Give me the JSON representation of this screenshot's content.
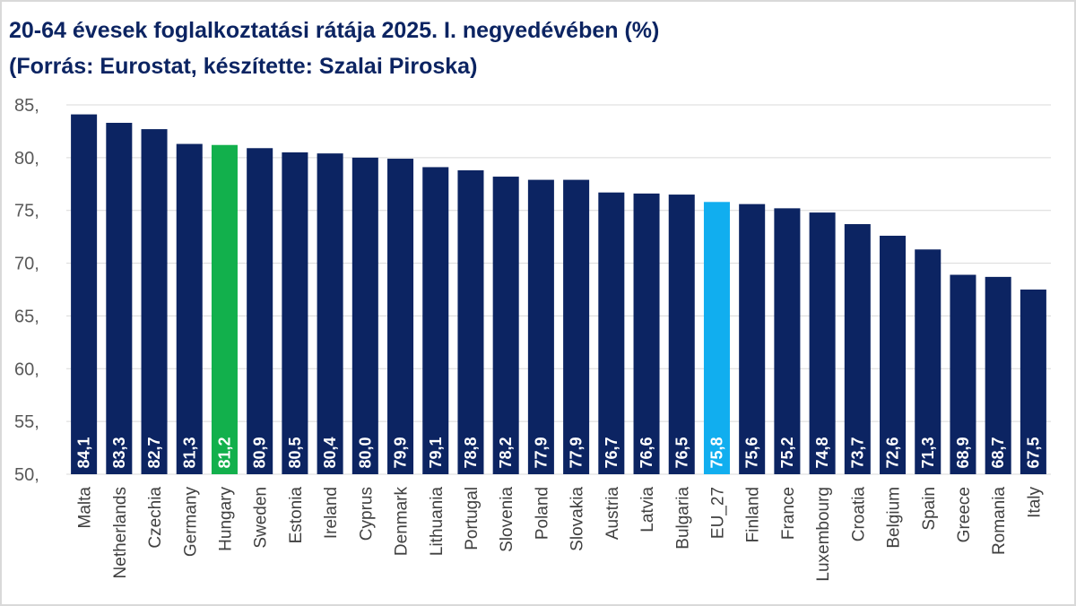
{
  "chart_data": {
    "type": "bar",
    "title": "20-64 évesek foglalkoztatási rátája 2025. I. negyedévében (%)",
    "subtitle": "(Forrás: Eurostat, készítette: Szalai Piroska)",
    "categories": [
      "Malta",
      "Netherlands",
      "Czechia",
      "Germany",
      "Hungary",
      "Sweden",
      "Estonia",
      "Ireland",
      "Cyprus",
      "Denmark",
      "Lithuania",
      "Portugal",
      "Slovenia",
      "Poland",
      "Slovakia",
      "Austria",
      "Latvia",
      "Bulgaria",
      "EU_27",
      "Finland",
      "France",
      "Luxembourg",
      "Croatia",
      "Belgium",
      "Spain",
      "Greece",
      "Romania",
      "Italy"
    ],
    "values": [
      84.1,
      83.3,
      82.7,
      81.3,
      81.2,
      80.9,
      80.5,
      80.4,
      80.0,
      79.9,
      79.1,
      78.8,
      78.2,
      77.9,
      77.9,
      76.7,
      76.6,
      76.5,
      75.8,
      75.6,
      75.2,
      74.8,
      73.7,
      72.6,
      71.3,
      68.9,
      68.7,
      67.5
    ],
    "value_labels": [
      "84,1",
      "83,3",
      "82,7",
      "81,3",
      "81,2",
      "80,9",
      "80,5",
      "80,4",
      "80,0",
      "79,9",
      "79,1",
      "78,8",
      "78,2",
      "77,9",
      "77,9",
      "76,7",
      "76,6",
      "76,5",
      "75,8",
      "75,6",
      "75,2",
      "74,8",
      "73,7",
      "72,6",
      "71,3",
      "68,9",
      "68,7",
      "67,5"
    ],
    "ylim": [
      50,
      85
    ],
    "yticks": [
      50,
      55,
      60,
      65,
      70,
      75,
      80,
      85
    ],
    "ytick_labels": [
      "50,",
      "55,",
      "60,",
      "65,",
      "70,",
      "75,",
      "80,",
      "85,"
    ],
    "xlabel": "",
    "ylabel": "",
    "grid": true,
    "legend": "none",
    "colors": {
      "default": "#0c2462",
      "highlights": {
        "Hungary": "#12b04c",
        "EU_27": "#11aeef"
      },
      "grid": "#d9d9d9",
      "title": "#0c2462"
    }
  }
}
